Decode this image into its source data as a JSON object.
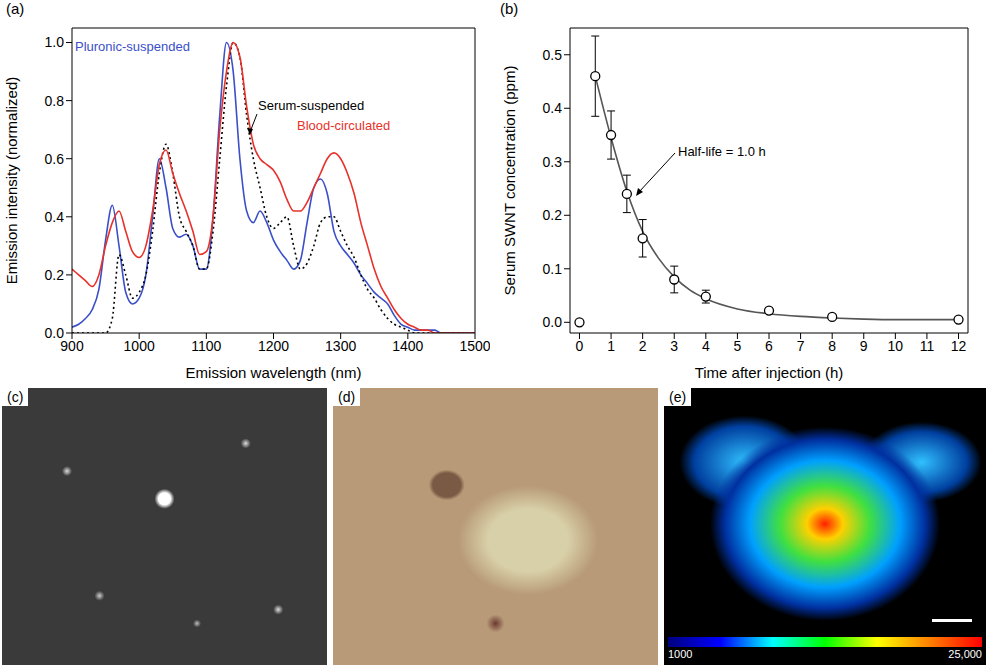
{
  "chart_data": [
    {
      "type": "line",
      "panel": "(a)",
      "x_label": "Emission wavelength (nm)",
      "y_label": "Emission intensity (normalized)",
      "x": [
        900,
        910,
        920,
        930,
        940,
        950,
        960,
        970,
        980,
        990,
        1000,
        1010,
        1020,
        1030,
        1040,
        1050,
        1060,
        1070,
        1080,
        1090,
        1100,
        1110,
        1120,
        1130,
        1140,
        1150,
        1160,
        1170,
        1180,
        1190,
        1200,
        1210,
        1220,
        1230,
        1240,
        1250,
        1260,
        1270,
        1280,
        1290,
        1300,
        1310,
        1320,
        1330,
        1340,
        1350,
        1360,
        1370,
        1380,
        1390,
        1400,
        1410,
        1420,
        1430,
        1440,
        1450,
        1460,
        1470,
        1480,
        1490,
        1500
      ],
      "xlim": [
        900,
        1500
      ],
      "xticks": [
        900,
        1000,
        1100,
        1200,
        1300,
        1400,
        1500
      ],
      "ylim": [
        0,
        1.05
      ],
      "yticks": [
        {
          "value": 0,
          "label": "0.0"
        },
        0.2,
        0.4,
        0.6,
        0.8,
        {
          "value": 1,
          "label": "1.0"
        }
      ],
      "series": [
        {
          "name": "Pluronic-suspended",
          "color": "#3a4fc8",
          "line_style": "solid",
          "values": [
            0.02,
            0.03,
            0.05,
            0.08,
            0.15,
            0.32,
            0.44,
            0.3,
            0.14,
            0.1,
            0.12,
            0.2,
            0.4,
            0.6,
            0.5,
            0.36,
            0.33,
            0.34,
            0.3,
            0.22,
            0.22,
            0.4,
            0.75,
            1.0,
            0.9,
            0.6,
            0.42,
            0.38,
            0.42,
            0.38,
            0.32,
            0.28,
            0.25,
            0.22,
            0.25,
            0.38,
            0.5,
            0.53,
            0.48,
            0.35,
            0.3,
            0.27,
            0.24,
            0.2,
            0.17,
            0.14,
            0.12,
            0.1,
            0.06,
            0.03,
            0.02,
            0.01,
            0.01,
            0.01,
            0.01,
            0,
            0,
            0,
            0,
            0,
            0
          ]
        },
        {
          "name": "Serum-suspended",
          "color": "#000000",
          "line_style": "dotted",
          "values": [
            0,
            0,
            0,
            0,
            0,
            0,
            0.05,
            0.27,
            0.2,
            0.12,
            0.14,
            0.2,
            0.35,
            0.55,
            0.65,
            0.55,
            0.4,
            0.35,
            0.3,
            0.22,
            0.22,
            0.35,
            0.6,
            0.85,
            1.0,
            0.95,
            0.75,
            0.6,
            0.5,
            0.4,
            0.36,
            0.38,
            0.4,
            0.3,
            0.22,
            0.24,
            0.3,
            0.38,
            0.4,
            0.4,
            0.35,
            0.3,
            0.26,
            0.2,
            0.15,
            0.12,
            0.08,
            0.05,
            0.03,
            0.02,
            0.01,
            0,
            0,
            0,
            0,
            0,
            0,
            0,
            0,
            0,
            0
          ]
        },
        {
          "name": "Blood-circulated",
          "color": "#e8312a",
          "line_style": "solid",
          "values": [
            0.22,
            0.2,
            0.18,
            0.16,
            0.2,
            0.3,
            0.38,
            0.42,
            0.35,
            0.28,
            0.26,
            0.3,
            0.42,
            0.58,
            0.63,
            0.55,
            0.48,
            0.42,
            0.35,
            0.27,
            0.28,
            0.4,
            0.7,
            0.9,
            1.0,
            0.95,
            0.78,
            0.65,
            0.6,
            0.58,
            0.56,
            0.52,
            0.46,
            0.42,
            0.42,
            0.45,
            0.5,
            0.55,
            0.6,
            0.62,
            0.6,
            0.55,
            0.48,
            0.38,
            0.3,
            0.22,
            0.16,
            0.12,
            0.08,
            0.05,
            0.03,
            0.02,
            0.01,
            0.01,
            0,
            0,
            0,
            0,
            0,
            0,
            0
          ]
        }
      ]
    },
    {
      "type": "scatter",
      "panel": "(b)",
      "x_label": "Time after injection (h)",
      "y_label": "Serum SWNT concentration (ppm)",
      "annotation": "Half-life = 1.0 h",
      "xlim": [
        -0.3,
        12.3
      ],
      "xticks": [
        0,
        1,
        2,
        3,
        4,
        5,
        6,
        7,
        8,
        9,
        10,
        11,
        12
      ],
      "ylim": [
        -0.02,
        0.55
      ],
      "yticks": [
        {
          "value": 0,
          "label": "0.0"
        },
        0.1,
        0.2,
        0.3,
        0.4,
        0.5
      ],
      "series": [
        {
          "type": "line",
          "color": "#555555",
          "line_style": "solid",
          "x": [
            0.5,
            1,
            1.5,
            2,
            2.5,
            3,
            3.5,
            4,
            5,
            6,
            7,
            8,
            9,
            10,
            11,
            12
          ],
          "values": [
            0.46,
            0.345,
            0.245,
            0.17,
            0.12,
            0.085,
            0.06,
            0.044,
            0.025,
            0.016,
            0.011,
            0.008,
            0.006,
            0.005,
            0.005,
            0.005
          ]
        },
        {
          "type": "scatter",
          "marker": "circle",
          "color": "#000000",
          "x": [
            0,
            0.5,
            1,
            1.5,
            2,
            3,
            4,
            6,
            8,
            12
          ],
          "values": [
            0,
            0.46,
            0.35,
            0.24,
            0.157,
            0.08,
            0.048,
            0.022,
            0.01,
            0.005
          ],
          "errors": [
            0,
            0.075,
            0.045,
            0.035,
            0.035,
            0.025,
            0.012,
            0.005,
            0.004,
            0.003
          ]
        }
      ]
    }
  ],
  "images": [
    {
      "panel": "(c)"
    },
    {
      "panel": "(d)"
    },
    {
      "panel": "(e)",
      "colorbar": {
        "range": [
          1000,
          25000
        ],
        "ticks": [
          1000,
          {
            "value": 25000,
            "label": "25,000"
          }
        ]
      }
    }
  ]
}
